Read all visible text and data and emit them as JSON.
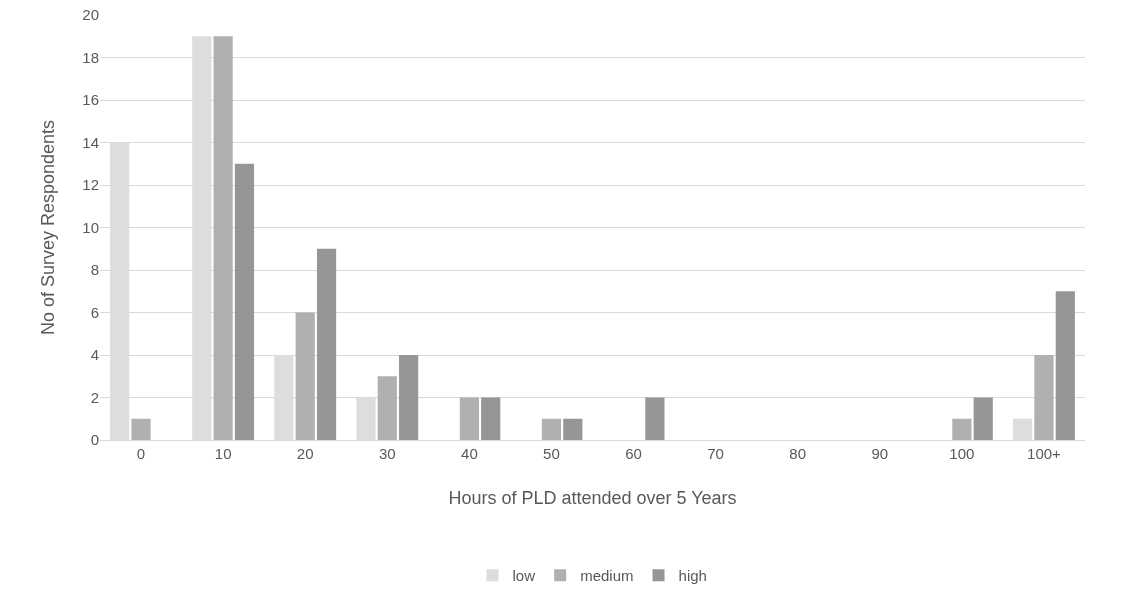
{
  "chart_data": {
    "type": "bar",
    "xlabel": "Hours of PLD attended over 5 Years",
    "ylabel": "No of Survey Respondents",
    "categories": [
      "0",
      "10",
      "20",
      "30",
      "40",
      "50",
      "60",
      "70",
      "80",
      "90",
      "100",
      "100+"
    ],
    "series": [
      {
        "name": "low",
        "color": "#dddddd",
        "values": [
          14,
          19,
          4,
          2,
          0,
          0,
          0,
          0,
          0,
          0,
          0,
          1
        ]
      },
      {
        "name": "medium",
        "color": "#b0b0b0",
        "values": [
          1,
          19,
          6,
          3,
          2,
          1,
          0,
          0,
          0,
          0,
          1,
          4
        ]
      },
      {
        "name": "high",
        "color": "#969696",
        "values": [
          0,
          13,
          9,
          4,
          2,
          1,
          2,
          0,
          0,
          0,
          2,
          7
        ]
      }
    ],
    "ylim": [
      0,
      20
    ],
    "yticks": [
      0,
      2,
      4,
      6,
      8,
      10,
      12,
      14,
      16,
      18,
      20
    ],
    "grid": "y",
    "legend": "bottom"
  }
}
